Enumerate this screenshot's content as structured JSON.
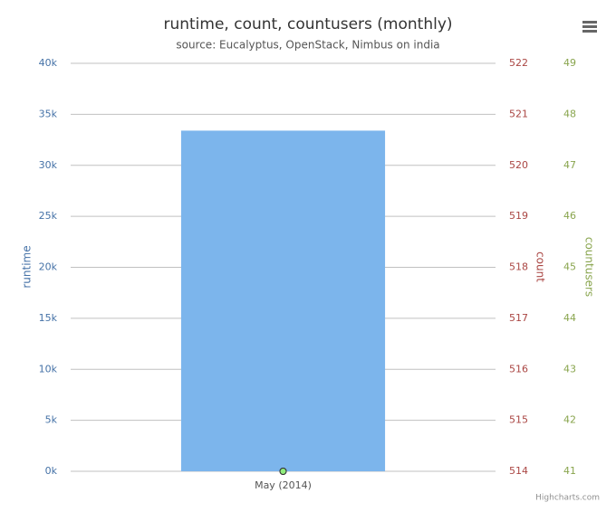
{
  "chart_data": {
    "type": "combo",
    "title": "runtime, count, countusers (monthly)",
    "subtitle": "source: Eucalyptus, OpenStack, Nimbus on india",
    "categories": [
      "May (2014)"
    ],
    "series": [
      {
        "name": "runtime",
        "type": "bar",
        "color": "#7cb5ec",
        "values": [
          33400
        ]
      },
      {
        "name": "count",
        "type": "line",
        "axis": "y2",
        "color": "#434348",
        "values": [
          514
        ]
      },
      {
        "name": "countusers",
        "type": "line",
        "axis": "y3",
        "color": "#90ed7d",
        "values": [
          41
        ]
      }
    ],
    "ylim": [
      0,
      40000
    ],
    "yticks": [
      {
        "value": 0,
        "label": "0k"
      },
      {
        "value": 5000,
        "label": "5k"
      },
      {
        "value": 10000,
        "label": "10k"
      },
      {
        "value": 15000,
        "label": "15k"
      },
      {
        "value": 20000,
        "label": "20k"
      },
      {
        "value": 25000,
        "label": "25k"
      },
      {
        "value": 30000,
        "label": "30k"
      },
      {
        "value": 35000,
        "label": "35k"
      },
      {
        "value": 40000,
        "label": "40k"
      }
    ],
    "y2lim": [
      514,
      522
    ],
    "y2ticks": [
      514,
      515,
      516,
      517,
      518,
      519,
      520,
      521,
      522
    ],
    "y3lim": [
      41,
      49
    ],
    "y3ticks": [
      41,
      42,
      43,
      44,
      45,
      46,
      47,
      48,
      49
    ],
    "grid": true,
    "credits": "Highcharts.com"
  }
}
